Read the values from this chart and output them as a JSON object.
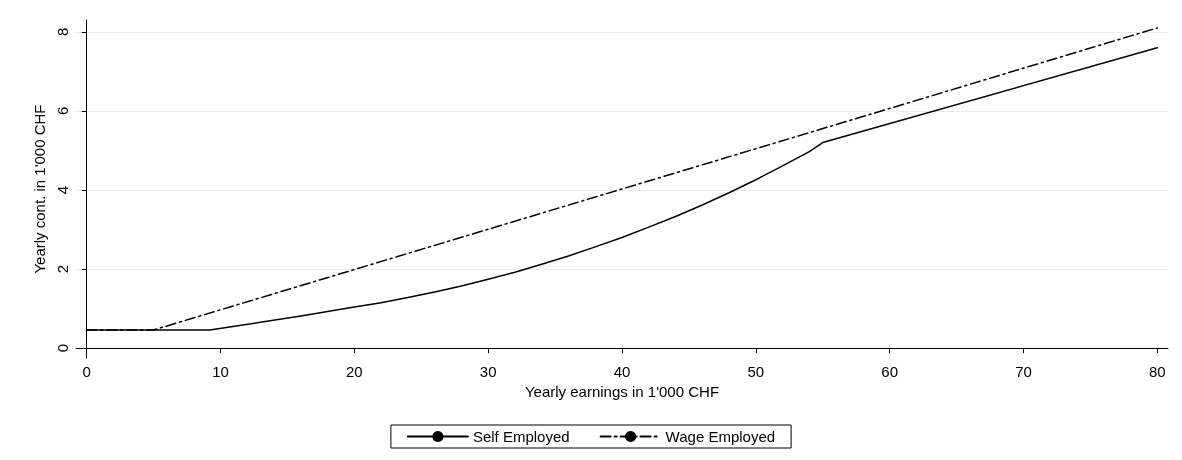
{
  "chart_data": {
    "type": "line",
    "xlabel": "Yearly earnings in 1'000 CHF",
    "ylabel": "Yearly cont. in 1'000 CHF",
    "xlim": [
      -0.8,
      80.8
    ],
    "xticks": [
      0,
      10,
      20,
      30,
      40,
      50,
      60,
      70,
      80
    ],
    "ylim": [
      -0.25,
      8.3
    ],
    "yticks": [
      0,
      2,
      4,
      6,
      8
    ],
    "grid": "y",
    "legend": "bottom",
    "marker": "none",
    "series": [
      {
        "name": "Self Employed",
        "color": "#000000",
        "line_style": "solid",
        "x": [
          0,
          9.2,
          16,
          20,
          22,
          24,
          26,
          28,
          30,
          32,
          34,
          36,
          38,
          40,
          42,
          44,
          46,
          48,
          50,
          52,
          54,
          55,
          80
        ],
        "values": [
          0.46,
          0.46,
          0.81,
          1.04,
          1.15,
          1.28,
          1.42,
          1.57,
          1.74,
          1.92,
          2.12,
          2.33,
          2.56,
          2.8,
          3.06,
          3.33,
          3.62,
          3.93,
          4.26,
          4.61,
          4.97,
          5.2,
          7.6
        ]
      },
      {
        "name": "Wage Employed",
        "color": "#000000",
        "line_style": "dashdot",
        "x": [
          0,
          5,
          80
        ],
        "values": [
          0.46,
          0.46,
          8.1
        ]
      }
    ]
  }
}
